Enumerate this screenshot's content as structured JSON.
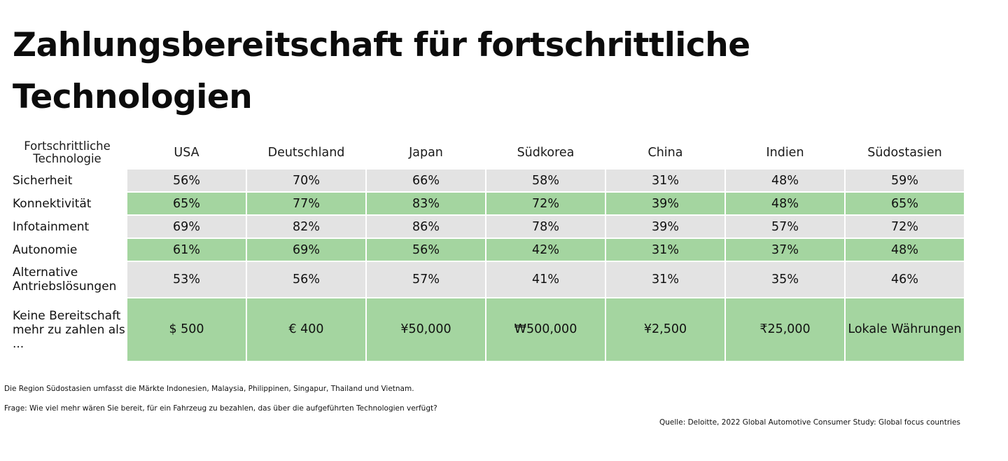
{
  "title": "Zahlungsbereitschaft für fortschrittliche Technologien",
  "colors": {
    "row_gray": "#e3e3e3",
    "row_green": "#a4d5a0"
  },
  "chart_data": {
    "type": "table",
    "title": "Zahlungsbereitschaft für fortschrittliche Technologien",
    "header_label": "Fortschrittliche Technologie",
    "columns": [
      "USA",
      "Deutschland",
      "Japan",
      "Südkorea",
      "China",
      "Indien",
      "Südostasien"
    ],
    "rows": [
      {
        "label": "Sicherheit",
        "values": [
          "56%",
          "70%",
          "66%",
          "58%",
          "31%",
          "48%",
          "59%"
        ]
      },
      {
        "label": "Konnektivität",
        "values": [
          "65%",
          "77%",
          "83%",
          "72%",
          "39%",
          "48%",
          "65%"
        ]
      },
      {
        "label": "Infotainment",
        "values": [
          "69%",
          "82%",
          "86%",
          "78%",
          "39%",
          "57%",
          "72%"
        ]
      },
      {
        "label": "Autonomie",
        "values": [
          "61%",
          "69%",
          "56%",
          "42%",
          "31%",
          "37%",
          "48%"
        ]
      },
      {
        "label": "Alternative Antriebslösungen",
        "values": [
          "53%",
          "56%",
          "57%",
          "41%",
          "31%",
          "35%",
          "46%"
        ]
      },
      {
        "label": "Keine Bereitschaft mehr zu zahlen als ...",
        "values": [
          "$ 500",
          "€ 400",
          "¥50,000",
          "₩500,000",
          "¥2,500",
          "₹25,000",
          "Lokale Währungen"
        ]
      }
    ]
  },
  "footnotes": {
    "region_note": "Die Region Südostasien umfasst die Märkte Indonesien, Malaysia, Philippinen, Singapur, Thailand und Vietnam.",
    "question": "Frage: Wie viel mehr wären Sie bereit, für ein Fahrzeug zu bezahlen, das über die aufgeführten Technologien verfügt?",
    "source": "Quelle: Deloitte, 2022 Global Automotive Consumer Study: Global focus countries"
  }
}
